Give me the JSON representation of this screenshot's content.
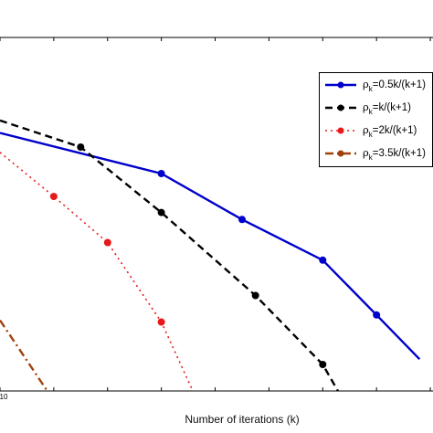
{
  "chart_data": {
    "type": "line",
    "xlabel": "Number of iterations (k)",
    "ylabel": "",
    "title": "",
    "legend_position": "top-right",
    "grid": false,
    "x_tick_labels": [
      "10"
    ],
    "series": [
      {
        "name_parts": [
          "ρ",
          "k",
          "=0.5k/(k+1)"
        ],
        "color": "#0000cc",
        "style": "solid",
        "marker": "circle",
        "points": [
          [
            0,
            0.73
          ],
          [
            3,
            0.615
          ],
          [
            4.5,
            0.485
          ],
          [
            6,
            0.37
          ],
          [
            7,
            0.215
          ],
          [
            7.8,
            0.09
          ]
        ]
      },
      {
        "name_parts": [
          "ρ",
          "k",
          "=k/(k+1)"
        ],
        "color": "#000000",
        "style": "dashed",
        "marker": "circle",
        "points": [
          [
            0,
            0.765
          ],
          [
            1.5,
            0.69
          ],
          [
            3,
            0.505
          ],
          [
            4.75,
            0.27
          ],
          [
            6,
            0.075
          ],
          [
            6.3,
            -0.005
          ]
        ]
      },
      {
        "name_parts": [
          "ρ",
          "k",
          "=2k/(k+1)"
        ],
        "color": "#e8191a",
        "style": "dotted",
        "marker": "circle",
        "points": [
          [
            0,
            0.675
          ],
          [
            1,
            0.55
          ],
          [
            2,
            0.42
          ],
          [
            3,
            0.195
          ],
          [
            3.6,
            -0.005
          ]
        ]
      },
      {
        "name_parts": [
          "ρ",
          "k",
          "=3.5k/(k+1)"
        ],
        "color": "#a0410d",
        "style": "dashdot",
        "marker": "circle",
        "points": [
          [
            0,
            0.2
          ],
          [
            0.9,
            -0.005
          ]
        ]
      }
    ]
  }
}
